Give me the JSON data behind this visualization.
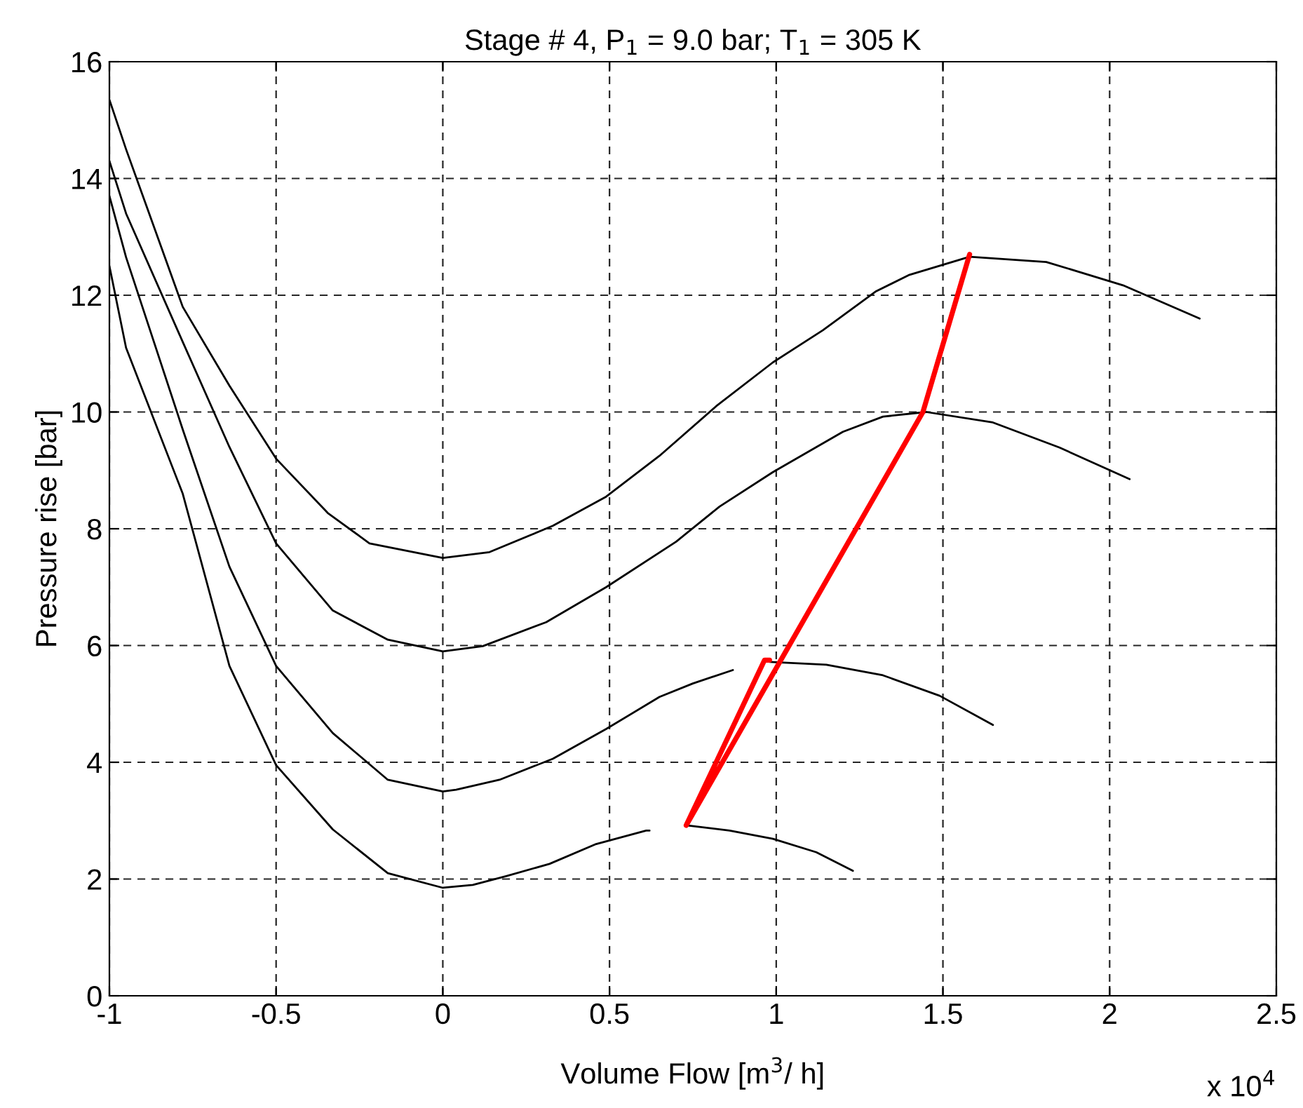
{
  "chart_data": {
    "type": "line",
    "title": "Stage # 4, P$_{1}$ = 9.0 bar; T$_{1}$ = 305 K",
    "xlabel": "Volume Flow [m$^{3}$/ h]",
    "ylabel": "Pressure rise [bar]",
    "annotations": [
      "x 10$^{4}$"
    ],
    "xlim": [
      -1,
      2.5
    ],
    "xticks": [
      -1,
      -0.5,
      0,
      0.5,
      1,
      1.5,
      2,
      2.5
    ],
    "ylim": [
      0,
      16
    ],
    "yticks": [
      0,
      2,
      4,
      6,
      8,
      10,
      12,
      14,
      16
    ],
    "grid": true,
    "legend": false,
    "marker": "none",
    "line_style": "solid",
    "series": [
      {
        "color": "#000000",
        "x": [
          -1,
          -0.95,
          -0.78,
          -0.64,
          -0.5,
          -0.345,
          -0.22,
          0,
          0.14,
          0.33,
          0.49,
          0.65,
          0.82,
          0.99,
          1.14,
          1.3,
          1.4,
          1.58,
          1.81,
          2.04,
          2.27
        ],
        "values": [
          15.35,
          14.5,
          11.8,
          10.45,
          9.2,
          8.27,
          7.75,
          7.5,
          7.6,
          8.05,
          8.55,
          9.25,
          10.1,
          10.85,
          11.4,
          12.07,
          12.35,
          12.66,
          12.57,
          12.17,
          11.6
        ]
      },
      {
        "color": "#000000",
        "x": [
          -1,
          -0.95,
          -0.78,
          -0.64,
          -0.5,
          -0.33,
          -0.165,
          0,
          0.12,
          0.31,
          0.49,
          0.7,
          0.83,
          0.99,
          1.2,
          1.32,
          1.45,
          1.65,
          1.85,
          2.06
        ],
        "values": [
          14.3,
          13.4,
          11.2,
          9.4,
          7.75,
          6.6,
          6.1,
          5.9,
          5.99,
          6.4,
          7.0,
          7.78,
          8.38,
          8.97,
          9.66,
          9.92,
          10.0,
          9.82,
          9.39,
          8.85
        ]
      },
      {
        "color": "#000000",
        "x": [
          -1,
          -0.95,
          -0.78,
          -0.64,
          -0.5,
          -0.33,
          -0.165,
          0,
          0.04,
          0.17,
          0.33,
          0.49,
          0.65,
          0.75,
          0.87
        ],
        "values": [
          13.7,
          12.65,
          9.7,
          7.35,
          5.65,
          4.5,
          3.7,
          3.5,
          3.53,
          3.7,
          4.06,
          4.57,
          5.12,
          5.35,
          5.58
        ]
      },
      {
        "color": "#000000",
        "x": [
          0.98,
          1.15,
          1.32,
          1.49,
          1.65
        ],
        "values": [
          5.72,
          5.67,
          5.49,
          5.14,
          4.64
        ]
      },
      {
        "color": "#000000",
        "x": [
          -1,
          -0.95,
          -0.78,
          -0.64,
          -0.5,
          -0.33,
          -0.165,
          0,
          0.09,
          0.19,
          0.32,
          0.46,
          0.61,
          0.62
        ],
        "values": [
          12.5,
          11.1,
          8.6,
          5.65,
          3.95,
          2.85,
          2.1,
          1.85,
          1.9,
          2.05,
          2.26,
          2.6,
          2.83,
          2.83
        ]
      },
      {
        "color": "#000000",
        "x": [
          0.73,
          0.86,
          0.99,
          1.12,
          1.23
        ],
        "values": [
          2.92,
          2.83,
          2.69,
          2.46,
          2.14
        ]
      },
      {
        "color": "#ff0000",
        "x": [
          0.98,
          0.965,
          0.73,
          1.44,
          1.58
        ],
        "values": [
          5.75,
          5.75,
          2.92,
          10.0,
          12.7
        ]
      }
    ]
  }
}
